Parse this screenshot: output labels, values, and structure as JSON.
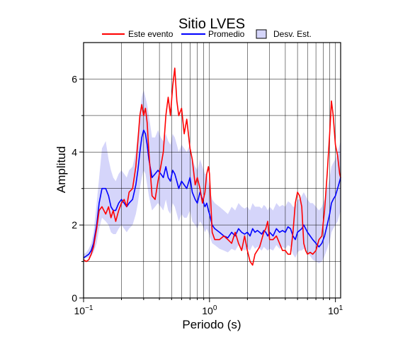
{
  "chart_data": {
    "type": "line",
    "title": "Sitio LVES",
    "xlabel": "Periodo (s)",
    "ylabel": "Amplitud",
    "x_scale": "log",
    "xlim": [
      0.1,
      11
    ],
    "ylim": [
      0,
      7
    ],
    "x_ticks": [
      {
        "value": 0.1,
        "base": "10",
        "exp": "−1"
      },
      {
        "value": 1,
        "base": "10",
        "exp": "0"
      },
      {
        "value": 10,
        "base": "10",
        "exp": "1"
      }
    ],
    "y_ticks": [
      0,
      2,
      4,
      6
    ],
    "grid": true,
    "legend_position": "top",
    "legend": [
      "Este evento",
      "Promedio",
      "Desv. Est."
    ],
    "colors": {
      "este_evento": "#ff0000",
      "promedio": "#0000ff",
      "desv_est_fill": "#d5d5fa",
      "desv_est_stroke": "#000000"
    },
    "series": [
      {
        "name": "Este evento",
        "x": [
          0.1,
          0.105,
          0.11,
          0.115,
          0.12,
          0.127,
          0.133,
          0.14,
          0.15,
          0.158,
          0.165,
          0.172,
          0.18,
          0.19,
          0.2,
          0.21,
          0.22,
          0.23,
          0.245,
          0.26,
          0.27,
          0.28,
          0.29,
          0.3,
          0.31,
          0.32,
          0.33,
          0.35,
          0.37,
          0.39,
          0.41,
          0.43,
          0.45,
          0.47,
          0.49,
          0.51,
          0.53,
          0.55,
          0.57,
          0.6,
          0.63,
          0.66,
          0.7,
          0.73,
          0.77,
          0.8,
          0.84,
          0.88,
          0.92,
          0.95,
          0.98,
          1.0,
          1.05,
          1.1,
          1.2,
          1.3,
          1.4,
          1.5,
          1.6,
          1.7,
          1.8,
          1.9,
          2.0,
          2.1,
          2.2,
          2.3,
          2.4,
          2.5,
          2.6,
          2.7,
          2.8,
          2.9,
          3.0,
          3.2,
          3.4,
          3.6,
          3.8,
          4.0,
          4.2,
          4.4,
          4.6,
          4.8,
          5.0,
          5.2,
          5.4,
          5.6,
          5.8,
          6.0,
          6.3,
          6.6,
          7.0,
          7.4,
          7.8,
          8.2,
          8.6,
          9.0,
          9.3,
          9.6,
          10.0,
          10.4,
          10.8,
          11.0
        ],
        "values": [
          1.05,
          1.0,
          1.05,
          1.2,
          1.4,
          1.9,
          2.4,
          2.5,
          2.3,
          2.5,
          2.2,
          2.4,
          2.1,
          2.4,
          2.6,
          2.7,
          2.5,
          2.9,
          3.0,
          3.6,
          4.3,
          5.0,
          5.3,
          5.0,
          5.2,
          4.8,
          4.0,
          2.8,
          2.7,
          3.2,
          3.6,
          4.0,
          5.0,
          5.5,
          5.0,
          5.8,
          6.3,
          5.4,
          5.0,
          5.2,
          4.5,
          4.9,
          4.1,
          3.8,
          3.1,
          3.3,
          3.0,
          2.6,
          2.9,
          3.4,
          3.6,
          3.4,
          1.8,
          1.6,
          1.6,
          1.7,
          1.6,
          1.5,
          1.8,
          1.5,
          1.3,
          1.7,
          1.3,
          1.0,
          0.9,
          1.2,
          1.3,
          1.4,
          1.6,
          1.8,
          1.9,
          2.1,
          1.6,
          1.6,
          1.7,
          1.5,
          1.3,
          1.3,
          1.2,
          1.2,
          1.8,
          2.6,
          2.9,
          2.8,
          2.5,
          1.5,
          1.3,
          1.2,
          1.25,
          1.2,
          1.3,
          1.6,
          1.7,
          2.4,
          3.4,
          4.5,
          5.4,
          5.0,
          4.2,
          3.9,
          3.4,
          3.3
        ]
      },
      {
        "name": "Promedio",
        "x": [
          0.1,
          0.105,
          0.11,
          0.115,
          0.12,
          0.127,
          0.133,
          0.14,
          0.15,
          0.158,
          0.165,
          0.172,
          0.18,
          0.19,
          0.2,
          0.21,
          0.22,
          0.23,
          0.245,
          0.26,
          0.27,
          0.28,
          0.29,
          0.3,
          0.31,
          0.32,
          0.33,
          0.35,
          0.37,
          0.39,
          0.41,
          0.43,
          0.45,
          0.47,
          0.49,
          0.51,
          0.53,
          0.55,
          0.57,
          0.6,
          0.63,
          0.66,
          0.7,
          0.73,
          0.77,
          0.8,
          0.84,
          0.88,
          0.92,
          0.95,
          0.98,
          1.0,
          1.05,
          1.1,
          1.2,
          1.3,
          1.4,
          1.5,
          1.6,
          1.7,
          1.8,
          1.9,
          2.0,
          2.1,
          2.2,
          2.3,
          2.4,
          2.5,
          2.6,
          2.7,
          2.8,
          2.9,
          3.0,
          3.2,
          3.4,
          3.6,
          3.8,
          4.0,
          4.2,
          4.4,
          4.6,
          4.8,
          5.0,
          5.2,
          5.4,
          5.6,
          5.8,
          6.0,
          6.3,
          6.6,
          7.0,
          7.4,
          7.8,
          8.2,
          8.6,
          9.0,
          9.3,
          9.6,
          10.0,
          10.4,
          10.8,
          11.0
        ],
        "values": [
          1.1,
          1.15,
          1.2,
          1.3,
          1.5,
          2.0,
          2.6,
          3.0,
          3.0,
          2.8,
          2.5,
          2.4,
          2.4,
          2.6,
          2.7,
          2.6,
          2.5,
          2.6,
          2.7,
          3.1,
          3.5,
          4.0,
          4.4,
          4.6,
          4.5,
          4.2,
          3.8,
          3.3,
          3.4,
          3.5,
          3.4,
          3.3,
          3.6,
          3.3,
          3.2,
          3.5,
          3.4,
          3.2,
          3.0,
          3.2,
          3.1,
          3.0,
          3.3,
          2.9,
          2.7,
          2.6,
          2.9,
          2.7,
          2.5,
          2.6,
          2.4,
          2.3,
          2.0,
          1.9,
          1.8,
          1.7,
          1.65,
          1.8,
          1.7,
          1.9,
          1.8,
          1.75,
          1.8,
          1.7,
          1.9,
          1.8,
          1.85,
          1.8,
          1.75,
          1.85,
          1.8,
          1.7,
          1.8,
          1.7,
          1.9,
          1.8,
          1.85,
          1.8,
          1.95,
          1.9,
          1.7,
          1.6,
          1.8,
          1.85,
          1.9,
          2.0,
          1.9,
          1.8,
          1.7,
          1.6,
          1.5,
          1.4,
          1.5,
          1.7,
          2.0,
          2.3,
          2.6,
          2.7,
          2.8,
          3.0,
          3.2,
          3.3
        ]
      },
      {
        "name": "Desv. Est.",
        "x": [
          0.1,
          0.105,
          0.11,
          0.115,
          0.12,
          0.127,
          0.133,
          0.14,
          0.15,
          0.158,
          0.165,
          0.172,
          0.18,
          0.19,
          0.2,
          0.21,
          0.22,
          0.23,
          0.245,
          0.26,
          0.27,
          0.28,
          0.29,
          0.3,
          0.31,
          0.32,
          0.33,
          0.35,
          0.37,
          0.39,
          0.41,
          0.43,
          0.45,
          0.47,
          0.49,
          0.51,
          0.53,
          0.55,
          0.57,
          0.6,
          0.63,
          0.66,
          0.7,
          0.73,
          0.77,
          0.8,
          0.84,
          0.88,
          0.92,
          0.95,
          0.98,
          1.0,
          1.05,
          1.1,
          1.2,
          1.3,
          1.4,
          1.5,
          1.6,
          1.7,
          1.8,
          1.9,
          2.0,
          2.1,
          2.2,
          2.3,
          2.4,
          2.5,
          2.6,
          2.7,
          2.8,
          2.9,
          3.0,
          3.2,
          3.4,
          3.6,
          3.8,
          4.0,
          4.2,
          4.4,
          4.6,
          4.8,
          5.0,
          5.2,
          5.4,
          5.6,
          5.8,
          6.0,
          6.3,
          6.6,
          7.0,
          7.4,
          7.8,
          8.2,
          8.6,
          9.0,
          9.3,
          9.6,
          10.0,
          10.4,
          10.8,
          11.0
        ],
        "upper": [
          1.2,
          1.25,
          1.35,
          1.5,
          1.8,
          2.6,
          3.3,
          4.1,
          4.3,
          3.8,
          3.5,
          3.3,
          3.2,
          3.4,
          3.5,
          3.4,
          3.3,
          3.5,
          3.6,
          4.0,
          4.5,
          5.1,
          5.5,
          5.7,
          5.5,
          5.3,
          5.0,
          4.4,
          4.4,
          4.6,
          4.4,
          4.3,
          4.5,
          4.3,
          4.2,
          4.5,
          4.4,
          4.2,
          4.0,
          4.2,
          4.1,
          4.0,
          4.2,
          3.8,
          3.6,
          3.5,
          3.8,
          3.6,
          3.4,
          3.4,
          3.2,
          3.0,
          2.7,
          2.6,
          2.5,
          2.4,
          2.3,
          2.5,
          2.4,
          2.6,
          2.5,
          2.45,
          2.5,
          2.4,
          2.6,
          2.5,
          2.5,
          2.5,
          2.45,
          2.55,
          2.5,
          2.4,
          2.5,
          2.4,
          2.6,
          2.5,
          2.55,
          2.5,
          2.65,
          2.6,
          2.5,
          2.5,
          2.7,
          2.7,
          2.8,
          2.9,
          2.8,
          2.7,
          2.6,
          2.6,
          2.5,
          2.4,
          2.5,
          2.7,
          3.0,
          3.3,
          3.6,
          3.7,
          3.8,
          4.0,
          4.2,
          4.3
        ],
        "lower": [
          1.05,
          1.1,
          1.1,
          1.15,
          1.25,
          1.5,
          1.9,
          2.2,
          2.1,
          2.0,
          1.8,
          1.75,
          1.75,
          1.9,
          2.0,
          1.9,
          1.8,
          1.9,
          2.0,
          2.3,
          2.6,
          3.0,
          3.3,
          3.5,
          3.4,
          3.1,
          2.8,
          2.4,
          2.5,
          2.6,
          2.5,
          2.4,
          2.7,
          2.4,
          2.3,
          2.6,
          2.5,
          2.3,
          2.1,
          2.3,
          2.2,
          2.2,
          2.4,
          2.1,
          2.0,
          1.9,
          2.1,
          2.0,
          1.8,
          1.9,
          1.8,
          1.7,
          1.5,
          1.45,
          1.35,
          1.3,
          1.25,
          1.35,
          1.3,
          1.45,
          1.35,
          1.3,
          1.35,
          1.3,
          1.45,
          1.35,
          1.4,
          1.35,
          1.3,
          1.4,
          1.35,
          1.3,
          1.35,
          1.3,
          1.45,
          1.35,
          1.4,
          1.35,
          1.45,
          1.4,
          1.2,
          1.1,
          1.25,
          1.3,
          1.3,
          1.35,
          1.3,
          1.25,
          1.15,
          1.05,
          1.0,
          0.95,
          1.0,
          1.15,
          1.35,
          1.55,
          1.8,
          1.9,
          2.0,
          2.1,
          2.3,
          2.4
        ]
      }
    ]
  }
}
